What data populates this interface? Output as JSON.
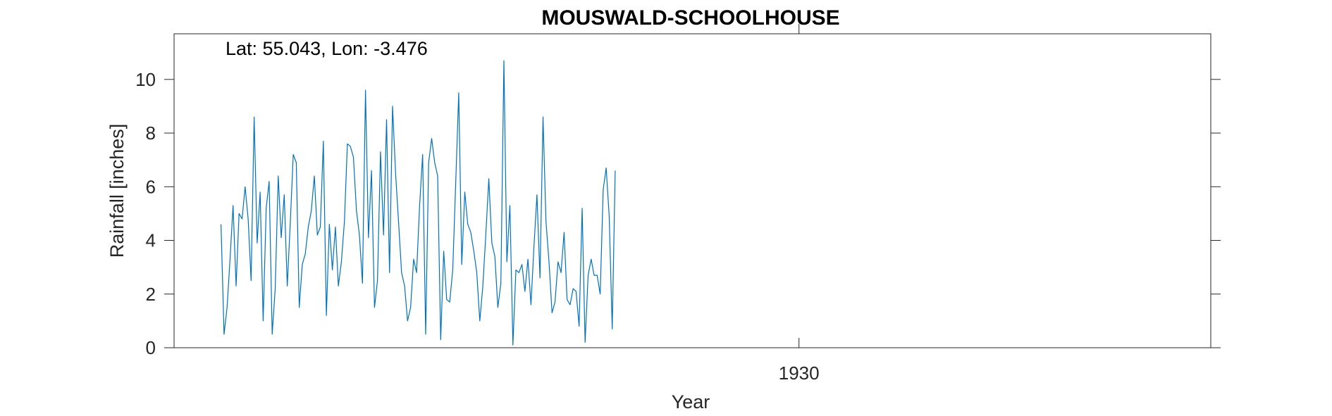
{
  "chart_data": {
    "type": "line",
    "title": "MOUSWALD-SCHOOLHOUSE",
    "annotation": "Lat: 55.043, Lon: -3.476",
    "xlabel": "Year",
    "ylabel": "Rainfall [inches]",
    "ylim": [
      0,
      11.7
    ],
    "yticks": [
      0,
      2,
      4,
      6,
      8,
      10
    ],
    "xticks": [
      {
        "value": 1930,
        "label": "1930"
      }
    ],
    "x_start": 1914.0,
    "x_step": 0.0833,
    "xlim": [
      1912.7,
      1941.4
    ],
    "grid": false,
    "series_color": "#0072bd",
    "series": [
      {
        "values": [
          4.6,
          0.5,
          1.5,
          3.3,
          5.3,
          2.3,
          5.0,
          4.8,
          6.0,
          4.8,
          2.5,
          8.6,
          3.9,
          5.8,
          1.0,
          5.2,
          6.2,
          0.5,
          2.2,
          6.4,
          4.1,
          5.7,
          2.3,
          4.6,
          7.2,
          6.9,
          1.5,
          3.1,
          3.5,
          4.5,
          5.1,
          6.4,
          4.2,
          4.5,
          7.7,
          1.2,
          4.6,
          2.9,
          4.5,
          2.3,
          3.2,
          4.7,
          7.6,
          7.5,
          7.1,
          5.1,
          4.2,
          2.4,
          9.6,
          4.1,
          6.6,
          1.5,
          2.5,
          7.3,
          4.2,
          8.5,
          2.8,
          9.0,
          6.5,
          4.7,
          2.8,
          2.3,
          1.0,
          1.5,
          3.3,
          2.8,
          5.3,
          7.2,
          0.5,
          6.9,
          7.8,
          6.9,
          6.4,
          0.3,
          3.6,
          1.8,
          1.7,
          2.9,
          6.2,
          9.5,
          3.1,
          5.8,
          4.6,
          4.3,
          3.6,
          2.8,
          1.0,
          2.3,
          4.2,
          6.3,
          3.9,
          3.4,
          1.5,
          2.4,
          10.7,
          3.2,
          5.3,
          0.1,
          2.9,
          2.8,
          3.1,
          2.1,
          3.3,
          1.6,
          3.8,
          5.7,
          2.6,
          8.6,
          4.7,
          3.2,
          1.3,
          1.7,
          3.2,
          2.8,
          4.3,
          1.8,
          1.6,
          2.2,
          2.1,
          0.8,
          5.2,
          0.2,
          2.7,
          3.3,
          2.7,
          2.7,
          2.0,
          5.9,
          6.7,
          4.9,
          0.7,
          6.6
        ]
      }
    ]
  }
}
